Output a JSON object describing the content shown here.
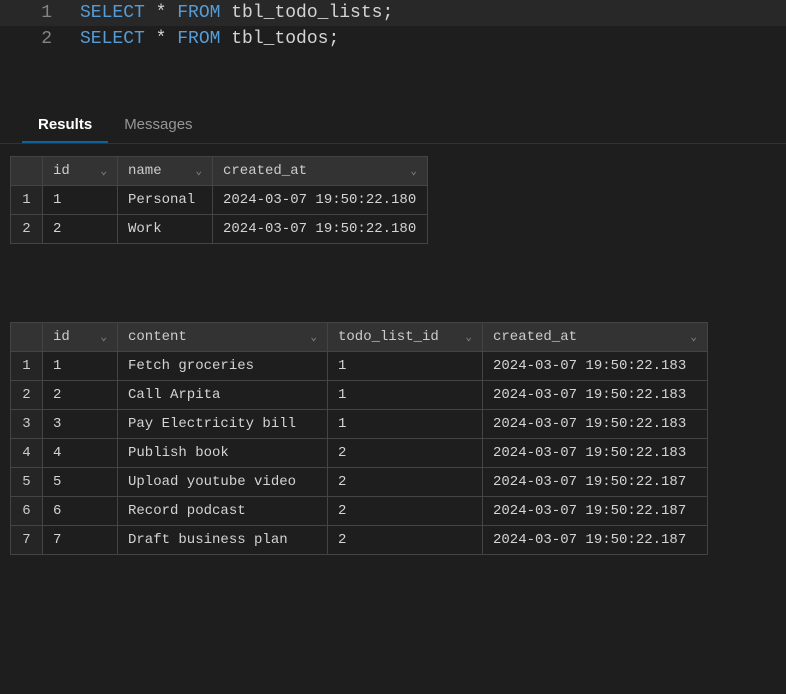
{
  "editor": {
    "lines": [
      {
        "number": "1",
        "tokens": [
          {
            "text": "SELECT",
            "class": "keyword"
          },
          {
            "text": " * ",
            "class": "operator"
          },
          {
            "text": "FROM",
            "class": "keyword"
          },
          {
            "text": " tbl_todo_lists;",
            "class": "identifier"
          }
        ]
      },
      {
        "number": "2",
        "tokens": [
          {
            "text": "SELECT",
            "class": "keyword"
          },
          {
            "text": " * ",
            "class": "operator"
          },
          {
            "text": "FROM",
            "class": "keyword"
          },
          {
            "text": " tbl_todos;",
            "class": "identifier"
          }
        ]
      }
    ]
  },
  "tabs": {
    "results": "Results",
    "messages": "Messages"
  },
  "table1": {
    "headers": {
      "id": "id",
      "name": "name",
      "created_at": "created_at"
    },
    "rows": [
      {
        "num": "1",
        "id": "1",
        "name": "Personal",
        "created_at": "2024-03-07 19:50:22.180"
      },
      {
        "num": "2",
        "id": "2",
        "name": "Work",
        "created_at": "2024-03-07 19:50:22.180"
      }
    ]
  },
  "table2": {
    "headers": {
      "id": "id",
      "content": "content",
      "todo_list_id": "todo_list_id",
      "created_at": "created_at"
    },
    "rows": [
      {
        "num": "1",
        "id": "1",
        "content": "Fetch groceries",
        "todo_list_id": "1",
        "created_at": "2024-03-07 19:50:22.183"
      },
      {
        "num": "2",
        "id": "2",
        "content": "Call Arpita",
        "todo_list_id": "1",
        "created_at": "2024-03-07 19:50:22.183"
      },
      {
        "num": "3",
        "id": "3",
        "content": "Pay Electricity bill",
        "todo_list_id": "1",
        "created_at": "2024-03-07 19:50:22.183"
      },
      {
        "num": "4",
        "id": "4",
        "content": "Publish book",
        "todo_list_id": "2",
        "created_at": "2024-03-07 19:50:22.183"
      },
      {
        "num": "5",
        "id": "5",
        "content": "Upload youtube video",
        "todo_list_id": "2",
        "created_at": "2024-03-07 19:50:22.187"
      },
      {
        "num": "6",
        "id": "6",
        "content": "Record podcast",
        "todo_list_id": "2",
        "created_at": "2024-03-07 19:50:22.187"
      },
      {
        "num": "7",
        "id": "7",
        "content": "Draft business plan",
        "todo_list_id": "2",
        "created_at": "2024-03-07 19:50:22.187"
      }
    ]
  },
  "chevron": "⌄"
}
